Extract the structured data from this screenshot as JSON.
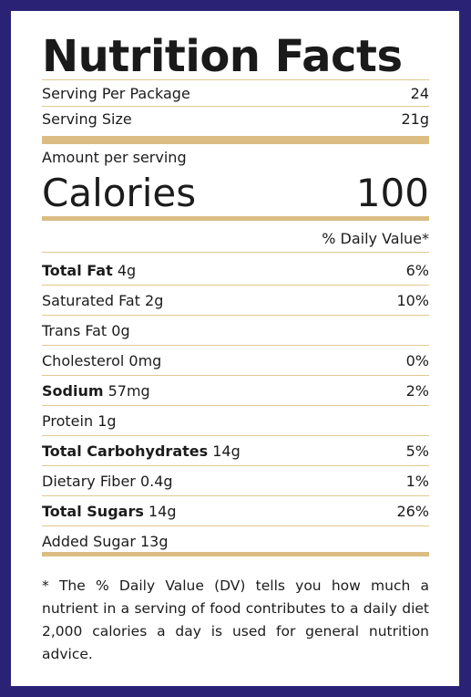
{
  "title": "Nutrition Facts",
  "serving_per_package": {
    "label": "Serving Per Package",
    "value": "24"
  },
  "serving_size": {
    "label": "Serving Size",
    "value": "21g"
  },
  "amount_per_serving": "Amount per serving",
  "calories": {
    "label": "Calories",
    "value": "100"
  },
  "daily_value_header": "% Daily Value*",
  "nutrients": [
    {
      "name": "Total Fat",
      "amount": "4g",
      "dv": "6%"
    },
    {
      "name": "Saturated Fat",
      "amount": "2g",
      "dv": "10%"
    },
    {
      "name": "Trans Fat",
      "amount": "0g",
      "dv": ""
    },
    {
      "name": "Cholesterol",
      "amount": "0mg",
      "dv": "0%"
    },
    {
      "name": "Sodium",
      "amount": "57mg",
      "dv": "2%"
    },
    {
      "name": "Protein",
      "amount": "1g",
      "dv": ""
    },
    {
      "name": "Total Carbohydrates",
      "amount": "14g",
      "dv": "5%"
    },
    {
      "name": "Dietary Fiber",
      "amount": "0.4g",
      "dv": "1%"
    },
    {
      "name": "Total Sugars",
      "amount": "14g",
      "dv": "26%"
    },
    {
      "name": "Added Sugar",
      "amount": "13g",
      "dv": ""
    }
  ],
  "footnote": "* The % Daily Value (DV) tells you how much a nutrient in a serving of food contributes to a daily diet 2,000 calories a day is used for general nutrition advice.",
  "colors": {
    "border": "#2a2375",
    "rule": "#dbbd84",
    "text": "#1c1c1c"
  }
}
